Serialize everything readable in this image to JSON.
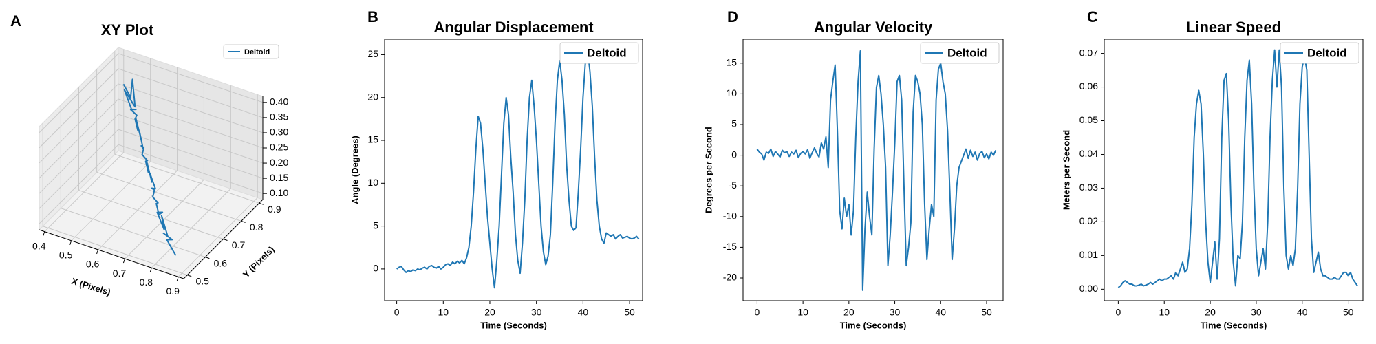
{
  "chart_data": [
    {
      "type": "line3d",
      "panel_label": "A",
      "title": "XY Plot",
      "xlabel": "X (Pixels)",
      "ylabel": "Y (Pixels)",
      "series": [
        {
          "name": "Deltoid",
          "color": "#1f77b4",
          "x": [
            0.48,
            0.52,
            0.5,
            0.55,
            0.49,
            0.53,
            0.56,
            0.52,
            0.57,
            0.55,
            0.58,
            0.56,
            0.6,
            0.58,
            0.62,
            0.6,
            0.63,
            0.61,
            0.65,
            0.63,
            0.66,
            0.64,
            0.68,
            0.66,
            0.7,
            0.68,
            0.71,
            0.69,
            0.73,
            0.71,
            0.74,
            0.76,
            0.72,
            0.78,
            0.75,
            0.8,
            0.77,
            0.83,
            0.79,
            0.85
          ],
          "y": [
            0.8,
            0.78,
            0.82,
            0.76,
            0.79,
            0.77,
            0.75,
            0.78,
            0.74,
            0.76,
            0.73,
            0.75,
            0.72,
            0.74,
            0.7,
            0.72,
            0.69,
            0.71,
            0.68,
            0.7,
            0.67,
            0.69,
            0.66,
            0.68,
            0.65,
            0.66,
            0.63,
            0.65,
            0.62,
            0.64,
            0.61,
            0.6,
            0.63,
            0.58,
            0.61,
            0.57,
            0.59,
            0.55,
            0.58,
            0.54
          ],
          "z": [
            0.4,
            0.38,
            0.41,
            0.37,
            0.39,
            0.35,
            0.37,
            0.34,
            0.36,
            0.33,
            0.32,
            0.34,
            0.3,
            0.31,
            0.29,
            0.28,
            0.3,
            0.26,
            0.27,
            0.25,
            0.24,
            0.26,
            0.22,
            0.23,
            0.21,
            0.2,
            0.22,
            0.18,
            0.19,
            0.17,
            0.16,
            0.18,
            0.15,
            0.14,
            0.16,
            0.13,
            0.12,
            0.14,
            0.11,
            0.1
          ]
        }
      ],
      "xlim": [
        0.38,
        0.92
      ],
      "ylim": [
        0.48,
        0.92
      ],
      "zlim": [
        0.08,
        0.42
      ],
      "xticks": [
        0.4,
        0.5,
        0.6,
        0.7,
        0.8,
        0.9
      ],
      "yticks": [
        0.5,
        0.6,
        0.7,
        0.8,
        0.9
      ],
      "zticks": [
        {
          "value": 0.1,
          "label": "0.10"
        },
        {
          "value": 0.15,
          "label": "0.15"
        },
        {
          "value": 0.2,
          "label": "0.20"
        },
        {
          "value": 0.25,
          "label": "0.25"
        },
        {
          "value": 0.3,
          "label": "0.30"
        },
        {
          "value": 0.35,
          "label": "0.35"
        },
        {
          "value": 0.4,
          "label": "0.40"
        }
      ],
      "grid": true,
      "legend": "upper right"
    },
    {
      "type": "line",
      "panel_label": "B",
      "title": "Angular Displacement",
      "xlabel": "Time (Seconds)",
      "ylabel": "Angle (Degrees)",
      "x": [
        0,
        0.5,
        1,
        1.5,
        2,
        2.5,
        3,
        3.5,
        4,
        4.5,
        5,
        5.5,
        6,
        6.5,
        7,
        7.5,
        8,
        8.5,
        9,
        9.5,
        10,
        10.5,
        11,
        11.5,
        12,
        12.5,
        13,
        13.5,
        14,
        14.5,
        15,
        15.5,
        16,
        16.5,
        17,
        17.5,
        18,
        18.5,
        19,
        19.5,
        20,
        20.5,
        21,
        21.5,
        22,
        22.5,
        23,
        23.5,
        24,
        24.5,
        25,
        25.5,
        26,
        26.5,
        27,
        27.5,
        28,
        28.5,
        29,
        29.5,
        30,
        30.5,
        31,
        31.5,
        32,
        32.5,
        33,
        33.5,
        34,
        34.5,
        35,
        35.5,
        36,
        36.5,
        37,
        37.5,
        38,
        38.5,
        39,
        39.5,
        40,
        40.5,
        41,
        41.5,
        42,
        42.5,
        43,
        43.5,
        44,
        44.5,
        45,
        45.5,
        46,
        46.5,
        47,
        47.5,
        48,
        48.5,
        49,
        49.5,
        50,
        50.5,
        51,
        51.5,
        52
      ],
      "series": [
        {
          "name": "Deltoid",
          "color": "#1f77b4",
          "values": [
            0,
            0.2,
            0.3,
            -0.1,
            -0.4,
            -0.2,
            -0.3,
            -0.1,
            -0.2,
            0,
            -0.1,
            0.1,
            0.2,
            0,
            0.3,
            0.4,
            0.2,
            0.1,
            0.3,
            0,
            0.2,
            0.5,
            0.6,
            0.4,
            0.8,
            0.6,
            0.9,
            0.7,
            1,
            0.6,
            1.3,
            2.5,
            5,
            9,
            14,
            17.8,
            17,
            14,
            10,
            6,
            3,
            0,
            -2.2,
            1,
            5,
            11,
            17,
            20,
            18,
            13,
            9,
            4,
            1,
            -0.5,
            3,
            8,
            15,
            20,
            22,
            19,
            15,
            10,
            5,
            2,
            0.5,
            1.5,
            4,
            10,
            17,
            22,
            24.3,
            22,
            18,
            12,
            8,
            5,
            4.5,
            4.8,
            9,
            14,
            20,
            24,
            25.5,
            23,
            19,
            13,
            8,
            5,
            3.5,
            3,
            4.2,
            4,
            3.8,
            4,
            3.5,
            3.8,
            4,
            3.6,
            3.7,
            3.8,
            3.6,
            3.5,
            3.6,
            3.8,
            3.5
          ]
        }
      ],
      "xlim": [
        -2.6,
        52.8
      ],
      "ylim": [
        -3.7,
        26.8
      ],
      "xticks": [
        0,
        10,
        20,
        30,
        40,
        50
      ],
      "yticks": [
        0,
        5,
        10,
        15,
        20,
        25
      ],
      "legend": "upper right"
    },
    {
      "type": "line",
      "panel_label": "D",
      "title": "Angular Velocity",
      "xlabel": "Time (Seconds)",
      "ylabel": "Degrees per Second",
      "x": [
        0,
        0.5,
        1,
        1.5,
        2,
        2.5,
        3,
        3.5,
        4,
        4.5,
        5,
        5.5,
        6,
        6.5,
        7,
        7.5,
        8,
        8.5,
        9,
        9.5,
        10,
        10.5,
        11,
        11.5,
        12,
        12.5,
        13,
        13.5,
        14,
        14.5,
        15,
        15.5,
        16,
        16.5,
        17,
        17.5,
        18,
        18.5,
        19,
        19.5,
        20,
        20.5,
        21,
        21.5,
        22,
        22.5,
        23,
        23.5,
        24,
        24.5,
        25,
        25.5,
        26,
        26.5,
        27,
        27.5,
        28,
        28.5,
        29,
        29.5,
        30,
        30.5,
        31,
        31.5,
        32,
        32.5,
        33,
        33.5,
        34,
        34.5,
        35,
        35.5,
        36,
        36.5,
        37,
        37.5,
        38,
        38.5,
        39,
        39.5,
        40,
        40.5,
        41,
        41.5,
        42,
        42.5,
        43,
        43.5,
        44,
        44.5,
        45,
        45.5,
        46,
        46.5,
        47,
        47.5,
        48,
        48.5,
        49,
        49.5,
        50,
        50.5,
        51,
        51.5,
        52
      ],
      "series": [
        {
          "name": "Deltoid",
          "color": "#1f77b4",
          "values": [
            1,
            0.5,
            0.2,
            -0.8,
            0.5,
            0.3,
            1,
            -0.2,
            0.6,
            0.2,
            -0.3,
            0.8,
            0.4,
            0.6,
            -0.2,
            0.5,
            0.2,
            0.8,
            -0.4,
            0.3,
            0.6,
            0.2,
            0.9,
            -0.5,
            0.4,
            1.2,
            0.3,
            -0.3,
            2,
            1,
            3,
            -2,
            9,
            12,
            14.7,
            4,
            -9,
            -12,
            -7,
            -10,
            -8,
            -13,
            -9,
            3,
            12,
            17,
            -22,
            -12,
            -6,
            -10,
            -13,
            1,
            11,
            13,
            10,
            5,
            -2,
            -18,
            -13,
            -6,
            2,
            12,
            13,
            9,
            -5,
            -18,
            -15,
            -11,
            7,
            13,
            12,
            10,
            5,
            -8,
            -17,
            -12,
            -8,
            -10,
            9,
            14,
            15,
            12,
            10,
            4,
            -6,
            -17,
            -12,
            -5,
            -2,
            -1,
            0,
            1,
            -0.5,
            0.8,
            -0.2,
            0.5,
            -0.8,
            0.3,
            0.6,
            -0.4,
            0.2,
            -0.6,
            0.5,
            0,
            0.8
          ]
        }
      ],
      "xlim": [
        -3.06,
        53.6
      ],
      "ylim": [
        -23.7,
        18.9
      ],
      "xticks": [
        0,
        10,
        20,
        30,
        40,
        50
      ],
      "yticks": [
        -20,
        -15,
        -10,
        -5,
        0,
        5,
        10,
        15
      ],
      "legend": "upper right"
    },
    {
      "type": "line",
      "panel_label": "C",
      "title": "Linear Speed",
      "xlabel": "Time (Seconds)",
      "ylabel": "Meters per Second",
      "x": [
        0,
        0.5,
        1,
        1.5,
        2,
        2.5,
        3,
        3.5,
        4,
        4.5,
        5,
        5.5,
        6,
        6.5,
        7,
        7.5,
        8,
        8.5,
        9,
        9.5,
        10,
        10.5,
        11,
        11.5,
        12,
        12.5,
        13,
        13.5,
        14,
        14.5,
        15,
        15.5,
        16,
        16.5,
        17,
        17.5,
        18,
        18.5,
        19,
        19.5,
        20,
        20.5,
        21,
        21.5,
        22,
        22.5,
        23,
        23.5,
        24,
        24.5,
        25,
        25.5,
        26,
        26.5,
        27,
        27.5,
        28,
        28.5,
        29,
        29.5,
        30,
        30.5,
        31,
        31.5,
        32,
        32.5,
        33,
        33.5,
        34,
        34.5,
        35,
        35.5,
        36,
        36.5,
        37,
        37.5,
        38,
        38.5,
        39,
        39.5,
        40,
        40.5,
        41,
        41.5,
        42,
        42.5,
        43,
        43.5,
        44,
        44.5,
        45,
        45.5,
        46,
        46.5,
        47,
        47.5,
        48,
        48.5,
        49,
        49.5,
        50,
        50.5,
        51,
        51.5,
        52
      ],
      "series": [
        {
          "name": "Deltoid",
          "color": "#1f77b4",
          "values": [
            0.0005,
            0.001,
            0.002,
            0.0025,
            0.002,
            0.0015,
            0.0015,
            0.001,
            0.001,
            0.0012,
            0.0015,
            0.001,
            0.0012,
            0.0015,
            0.002,
            0.0015,
            0.002,
            0.0025,
            0.003,
            0.0025,
            0.003,
            0.003,
            0.0035,
            0.004,
            0.003,
            0.005,
            0.004,
            0.006,
            0.008,
            0.005,
            0.006,
            0.012,
            0.025,
            0.045,
            0.055,
            0.059,
            0.055,
            0.04,
            0.02,
            0.008,
            0.002,
            0.008,
            0.014,
            0.003,
            0.015,
            0.045,
            0.062,
            0.064,
            0.05,
            0.025,
            0.008,
            0.001,
            0.01,
            0.009,
            0.02,
            0.045,
            0.062,
            0.068,
            0.055,
            0.03,
            0.012,
            0.004,
            0.008,
            0.012,
            0.006,
            0.02,
            0.045,
            0.062,
            0.071,
            0.06,
            0.071,
            0.06,
            0.03,
            0.01,
            0.006,
            0.01,
            0.007,
            0.012,
            0.03,
            0.055,
            0.066,
            0.069,
            0.065,
            0.04,
            0.015,
            0.005,
            0.008,
            0.011,
            0.006,
            0.004,
            0.004,
            0.0035,
            0.003,
            0.003,
            0.0035,
            0.003,
            0.003,
            0.004,
            0.005,
            0.005,
            0.004,
            0.005,
            0.003,
            0.002,
            0.001
          ]
        }
      ],
      "xlim": [
        -3.05,
        53.2
      ],
      "ylim": [
        -0.0034,
        0.0742
      ],
      "xticks": [
        0,
        10,
        20,
        30,
        40,
        50
      ],
      "yticks": [
        {
          "value": 0,
          "label": "0.00"
        },
        0.01,
        0.02,
        0.03,
        0.04,
        0.05,
        0.06,
        0.07
      ],
      "legend": "upper right"
    }
  ]
}
